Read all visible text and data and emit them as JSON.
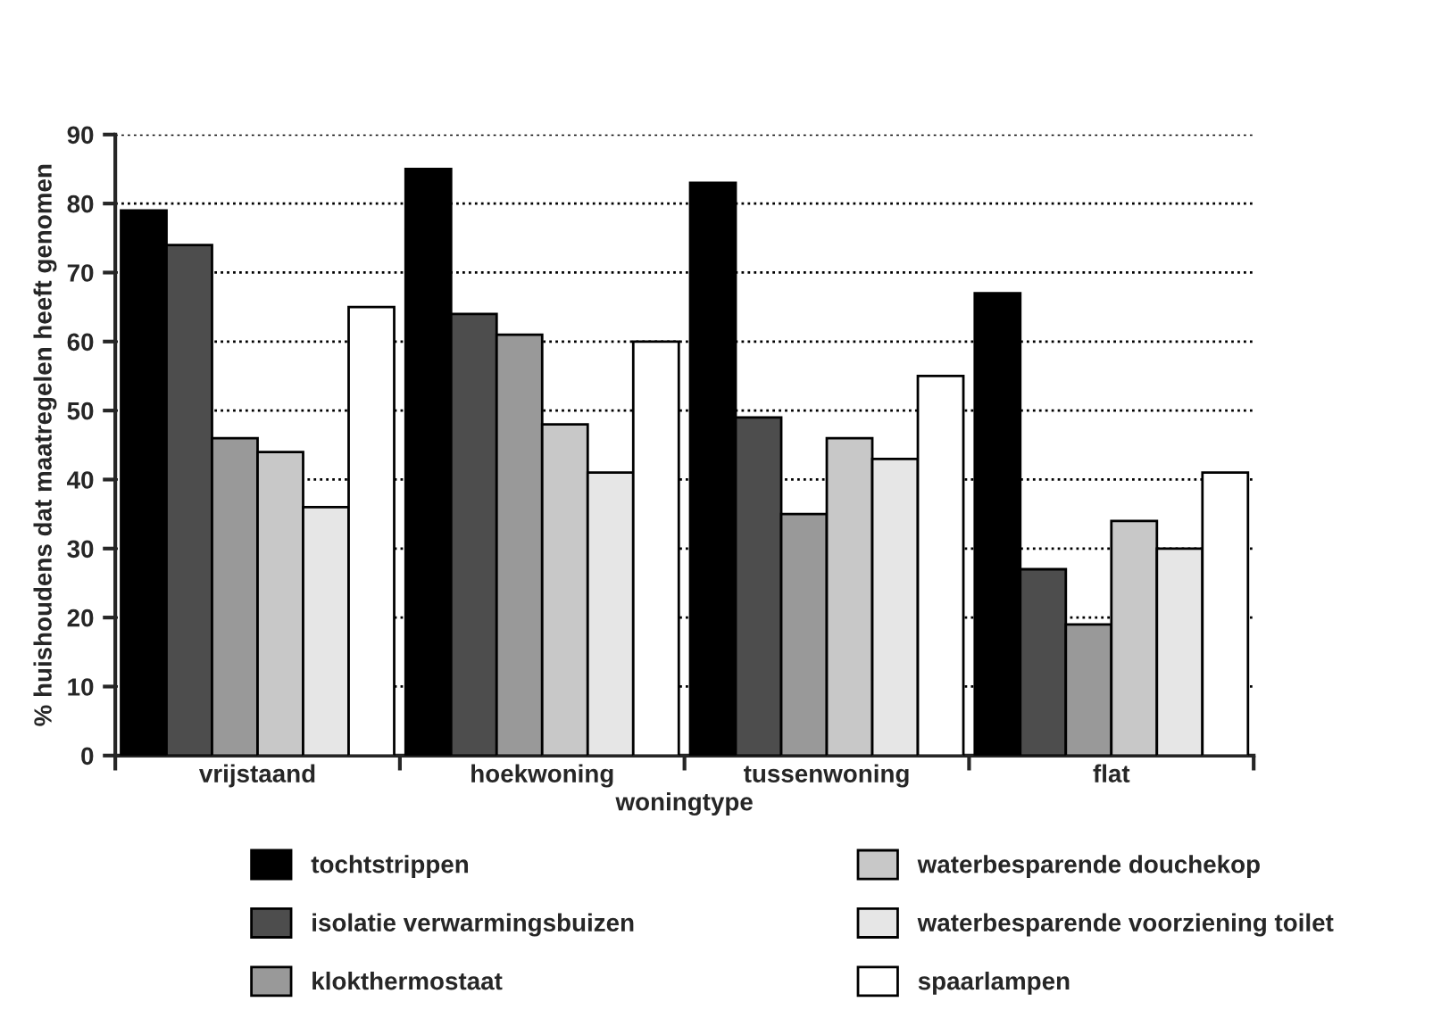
{
  "chart_data": {
    "type": "bar",
    "xlabel": "woningtype",
    "ylabel": "% huishoudens dat maatregelen heeft genomen",
    "categories": [
      "vrijstaand",
      "hoekwoning",
      "tussenwoning",
      "flat"
    ],
    "series": [
      {
        "name": "tochtstrippen",
        "color": "#000000",
        "values": [
          79,
          85,
          83,
          67
        ]
      },
      {
        "name": "isolatie verwarmingsbuizen",
        "color": "#4d4d4d",
        "values": [
          74,
          64,
          49,
          27
        ]
      },
      {
        "name": "klokthermostaat",
        "color": "#999999",
        "values": [
          46,
          61,
          35,
          19
        ]
      },
      {
        "name": "waterbesparende douchekop",
        "color": "#c8c8c8",
        "values": [
          44,
          48,
          46,
          34
        ]
      },
      {
        "name": "waterbesparende voorziening toilet",
        "color": "#e6e6e6",
        "values": [
          36,
          41,
          43,
          30
        ]
      },
      {
        "name": "spaarlampen",
        "color": "#ffffff",
        "values": [
          65,
          60,
          55,
          41
        ]
      }
    ],
    "ylim": [
      0,
      90
    ],
    "yticks": [
      0,
      10,
      20,
      30,
      40,
      50,
      60,
      70,
      80,
      90
    ],
    "grid": "y",
    "legend": "bottom"
  }
}
